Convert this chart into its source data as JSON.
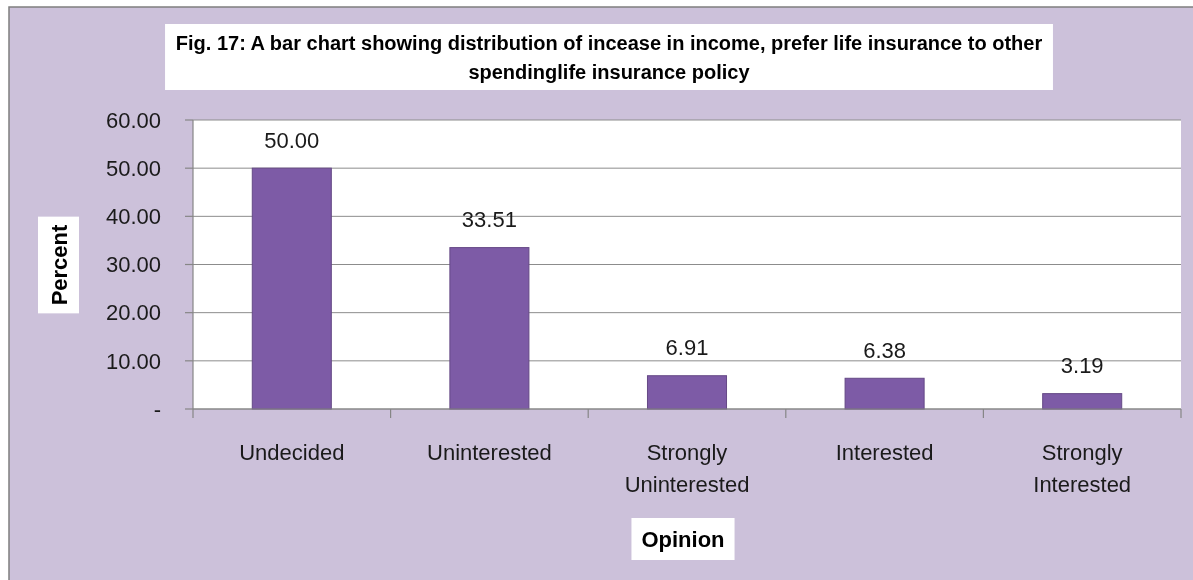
{
  "chart_data": {
    "type": "bar",
    "title": "Fig. 17: A bar chart showing distribution of incease in income, prefer life insurance to other spendinglife insurance policy",
    "xlabel": "Opinion",
    "ylabel": "Percent",
    "categories": [
      "Undecided",
      "Uninterested",
      "Strongly Uninterested",
      "Interested",
      "Strongly Interested"
    ],
    "values": [
      50.0,
      33.51,
      6.91,
      6.38,
      3.19
    ],
    "value_labels": [
      "50.00",
      "33.51",
      "6.91",
      "6.38",
      "3.19"
    ],
    "color": "#7d5ba6",
    "ylim": [
      0,
      60
    ],
    "yticks": [
      {
        "value": 0,
        "label": "-"
      },
      {
        "value": 10,
        "label": "10.00"
      },
      {
        "value": 20,
        "label": "20.00"
      },
      {
        "value": 30,
        "label": "30.00"
      },
      {
        "value": 40,
        "label": "40.00"
      },
      {
        "value": 50,
        "label": "50.00"
      },
      {
        "value": 60,
        "label": "60.00"
      }
    ],
    "grid": "y"
  }
}
